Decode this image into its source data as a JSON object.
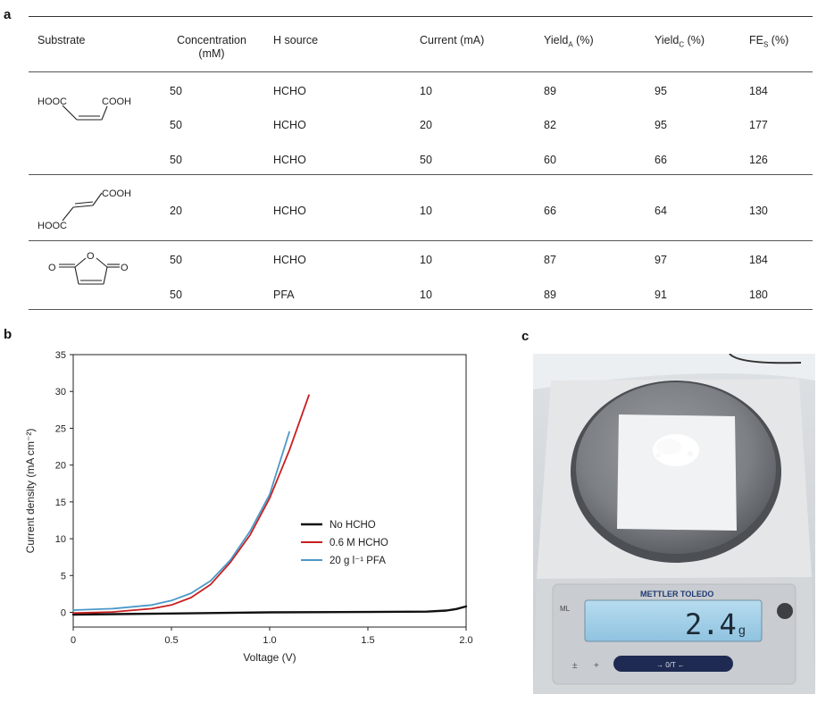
{
  "panels": {
    "a": "a",
    "b": "b",
    "c": "c"
  },
  "table": {
    "headers": {
      "substrate": "Substrate",
      "concentration": "Concentration",
      "concentration_unit": "(mM)",
      "h_source": "H source",
      "current": "Current (mA)",
      "yield_a_main": "Yield",
      "yield_a_sub": "A",
      "yield_a_unit": " (%)",
      "yield_c_main": "Yield",
      "yield_c_sub": "C",
      "yield_c_unit": " (%)",
      "fe_main": "FE",
      "fe_sub": "S",
      "fe_unit": " (%)"
    },
    "molecules": {
      "maleic_left": "HOOC",
      "maleic_right": "COOH",
      "fumaric_top": "COOH",
      "fumaric_bottom": "HOOC",
      "anhydride_o_left": "O",
      "anhydride_o_ring": "O",
      "anhydride_o_right": "O"
    },
    "rows": [
      {
        "conc": "50",
        "h": "HCHO",
        "cur": "10",
        "ya": "89",
        "yc": "95",
        "fe": "184"
      },
      {
        "conc": "50",
        "h": "HCHO",
        "cur": "20",
        "ya": "82",
        "yc": "95",
        "fe": "177"
      },
      {
        "conc": "50",
        "h": "HCHO",
        "cur": "50",
        "ya": "60",
        "yc": "66",
        "fe": "126"
      },
      {
        "conc": "20",
        "h": "HCHO",
        "cur": "10",
        "ya": "66",
        "yc": "64",
        "fe": "130"
      },
      {
        "conc": "50",
        "h": "HCHO",
        "cur": "10",
        "ya": "87",
        "yc": "97",
        "fe": "184"
      },
      {
        "conc": "50",
        "h": "PFA",
        "cur": "10",
        "ya": "89",
        "yc": "91",
        "fe": "180"
      }
    ]
  },
  "chart_data": {
    "type": "line",
    "xlabel": "Voltage (V)",
    "ylabel": "Current density (mA cm⁻²)",
    "xlim": [
      0,
      2.0
    ],
    "ylim": [
      0,
      35
    ],
    "xticks": [
      "0",
      "0.5",
      "1.0",
      "1.5",
      "2.0"
    ],
    "yticks": [
      "0",
      "5",
      "10",
      "15",
      "20",
      "25",
      "30",
      "35"
    ],
    "legend_position": "center-right",
    "series": [
      {
        "name": "No HCHO",
        "color": "#111111",
        "x": [
          0,
          0.5,
          1.0,
          1.5,
          1.8,
          1.9,
          1.95,
          2.0
        ],
        "y": [
          -0.3,
          -0.15,
          0.0,
          0.05,
          0.1,
          0.25,
          0.45,
          0.8
        ]
      },
      {
        "name": "0.6 M HCHO",
        "color": "#c81e1e",
        "x": [
          0,
          0.2,
          0.4,
          0.5,
          0.6,
          0.7,
          0.8,
          0.9,
          1.0,
          1.1,
          1.2
        ],
        "y": [
          -0.1,
          0.05,
          0.5,
          1.0,
          2.0,
          3.8,
          6.8,
          10.5,
          15.5,
          22.0,
          29.5
        ]
      },
      {
        "name": "20 g l⁻¹ PFA",
        "color": "#4a98c8",
        "x": [
          0,
          0.2,
          0.4,
          0.5,
          0.6,
          0.7,
          0.8,
          0.9,
          1.0,
          1.1
        ],
        "y": [
          0.3,
          0.5,
          1.0,
          1.6,
          2.6,
          4.3,
          7.1,
          11.0,
          16.0,
          24.5
        ]
      }
    ]
  },
  "photo": {
    "brand": "METTLER TOLEDO",
    "reading": "2.4",
    "unit": "g",
    "tare": "→ 0/T ←",
    "model": "ML"
  }
}
